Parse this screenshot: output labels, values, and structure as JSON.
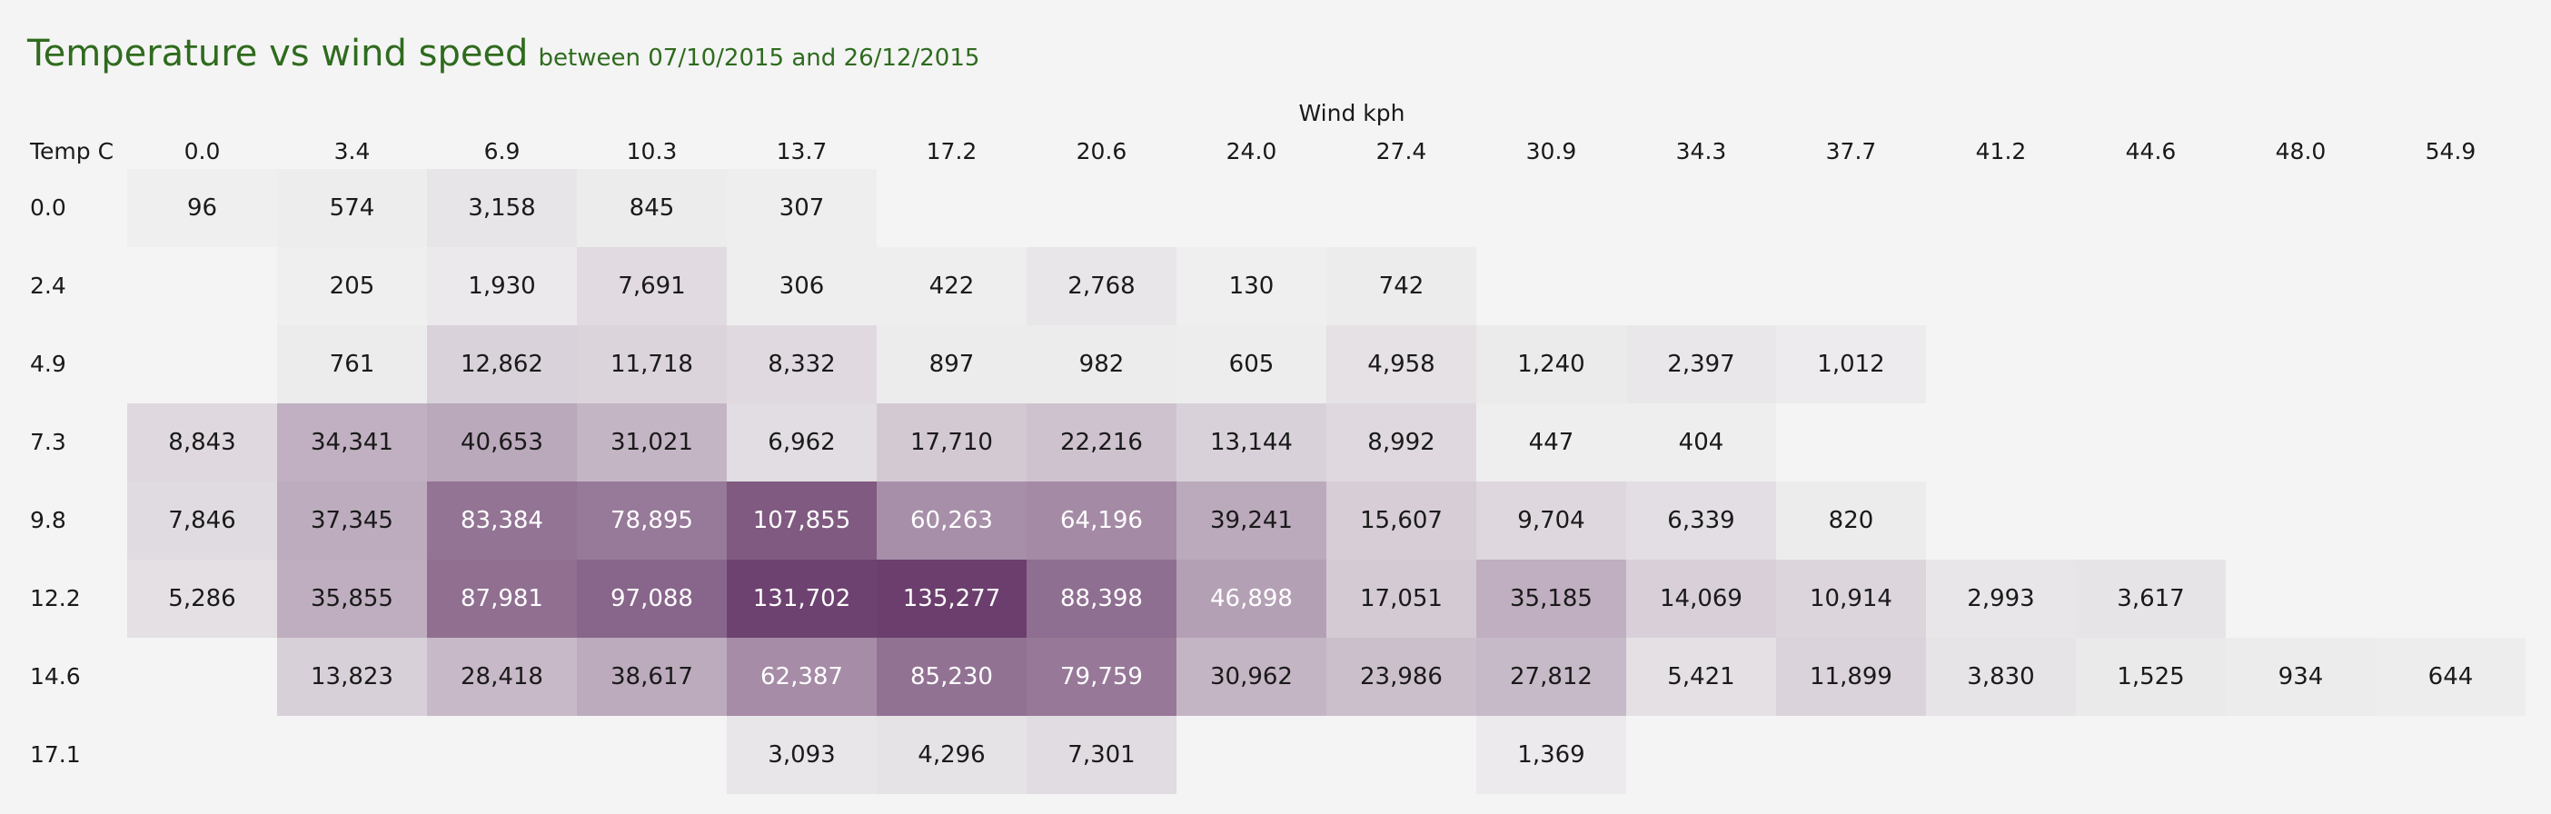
{
  "header": {
    "title": "Temperature vs wind speed",
    "subtitle": "between 07/10/2015 and 26/12/2015"
  },
  "chart_data": {
    "type": "heatmap",
    "xlabel": "Wind kph",
    "ylabel": "Temp C",
    "x": [
      "0.0",
      "3.4",
      "6.9",
      "10.3",
      "13.7",
      "17.2",
      "20.6",
      "24.0",
      "27.4",
      "30.9",
      "34.3",
      "37.7",
      "41.2",
      "44.6",
      "48.0",
      "54.9"
    ],
    "y": [
      "0.0",
      "2.4",
      "4.9",
      "7.3",
      "9.8",
      "12.2",
      "14.6",
      "17.1"
    ],
    "values": [
      [
        96,
        574,
        3158,
        845,
        307,
        null,
        null,
        null,
        null,
        null,
        null,
        null,
        null,
        null,
        null,
        null
      ],
      [
        null,
        205,
        1930,
        7691,
        306,
        422,
        2768,
        130,
        742,
        null,
        null,
        null,
        null,
        null,
        null,
        null
      ],
      [
        null,
        761,
        12862,
        11718,
        8332,
        897,
        982,
        605,
        4958,
        1240,
        2397,
        1012,
        null,
        null,
        null,
        null
      ],
      [
        8843,
        34341,
        40653,
        31021,
        6962,
        17710,
        22216,
        13144,
        8992,
        447,
        404,
        null,
        null,
        null,
        null,
        null
      ],
      [
        7846,
        37345,
        83384,
        78895,
        107855,
        60263,
        64196,
        39241,
        15607,
        9704,
        6339,
        820,
        null,
        null,
        null,
        null
      ],
      [
        5286,
        35855,
        87981,
        97088,
        131702,
        135277,
        88398,
        46898,
        17051,
        35185,
        14069,
        10914,
        2993,
        3617,
        null,
        null
      ],
      [
        null,
        13823,
        28418,
        38617,
        62387,
        85230,
        79759,
        30962,
        23986,
        27812,
        5421,
        11899,
        3830,
        1525,
        934,
        644
      ],
      [
        null,
        null,
        null,
        null,
        3093,
        4296,
        7301,
        null,
        null,
        1369,
        null,
        null,
        null,
        null,
        null,
        null
      ]
    ],
    "labels": [
      [
        "96",
        "574",
        "3,158",
        "845",
        "307",
        "",
        "",
        "",
        "",
        "",
        "",
        "",
        "",
        "",
        "",
        ""
      ],
      [
        "",
        "205",
        "1,930",
        "7,691",
        "306",
        "422",
        "2,768",
        "130",
        "742",
        "",
        "",
        "",
        "",
        "",
        "",
        ""
      ],
      [
        "",
        "761",
        "12,862",
        "11,718",
        "8,332",
        "897",
        "982",
        "605",
        "4,958",
        "1,240",
        "2,397",
        "1,012",
        "",
        "",
        "",
        ""
      ],
      [
        "8,843",
        "34,341",
        "40,653",
        "31,021",
        "6,962",
        "17,710",
        "22,216",
        "13,144",
        "8,992",
        "447",
        "404",
        "",
        "",
        "",
        "",
        ""
      ],
      [
        "7,846",
        "37,345",
        "83,384",
        "78,895",
        "107,855",
        "60,263",
        "64,196",
        "39,241",
        "15,607",
        "9,704",
        "6,339",
        "820",
        "",
        "",
        "",
        ""
      ],
      [
        "5,286",
        "35,855",
        "87,981",
        "97,088",
        "131,702",
        "135,277",
        "88,398",
        "46,898",
        "17,051",
        "35,185",
        "14,069",
        "10,914",
        "2,993",
        "3,617",
        "",
        ""
      ],
      [
        "",
        "13,823",
        "28,418",
        "38,617",
        "62,387",
        "85,230",
        "79,759",
        "30,962",
        "23,986",
        "27,812",
        "5,421",
        "11,899",
        "3,830",
        "1,525",
        "934",
        "644"
      ],
      [
        "",
        "",
        "",
        "",
        "3,093",
        "4,296",
        "7,301",
        "",
        "",
        "1,369",
        "",
        "",
        "",
        "",
        "",
        ""
      ]
    ],
    "colors": {
      "low": "#f0f0f0",
      "high": "#6b3e6d",
      "title": "#2f6b1e"
    }
  }
}
